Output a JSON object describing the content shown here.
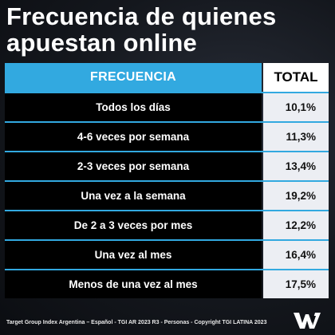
{
  "title": "Frecuencia de quienes apuestan online",
  "footer": "Target Group Index Argentina – Español  - TGI AR 2023 R3 - Personas - Copyright TGI LATINA 2023",
  "logo_icon": "wm-logo-icon",
  "colors": {
    "header_accent": "#32a9e0",
    "row_background": "#000000",
    "value_background": "#eceef3"
  },
  "chart_data": {
    "type": "table",
    "columns": [
      "FRECUENCIA",
      "TOTAL"
    ],
    "rows": [
      {
        "frecuencia": "Todos los días",
        "total": "10,1%",
        "value": 10.1
      },
      {
        "frecuencia": "4-6 veces por semana",
        "total": "11,3%",
        "value": 11.3
      },
      {
        "frecuencia": "2-3 veces por semana",
        "total": "13,4%",
        "value": 13.4
      },
      {
        "frecuencia": "Una vez a la semana",
        "total": "19,2%",
        "value": 19.2
      },
      {
        "frecuencia": "De 2 a 3 veces por mes",
        "total": "12,2%",
        "value": 12.2
      },
      {
        "frecuencia": "Una vez al mes",
        "total": "16,4%",
        "value": 16.4
      },
      {
        "frecuencia": "Menos de una vez al mes",
        "total": "17,5%",
        "value": 17.5
      }
    ]
  }
}
